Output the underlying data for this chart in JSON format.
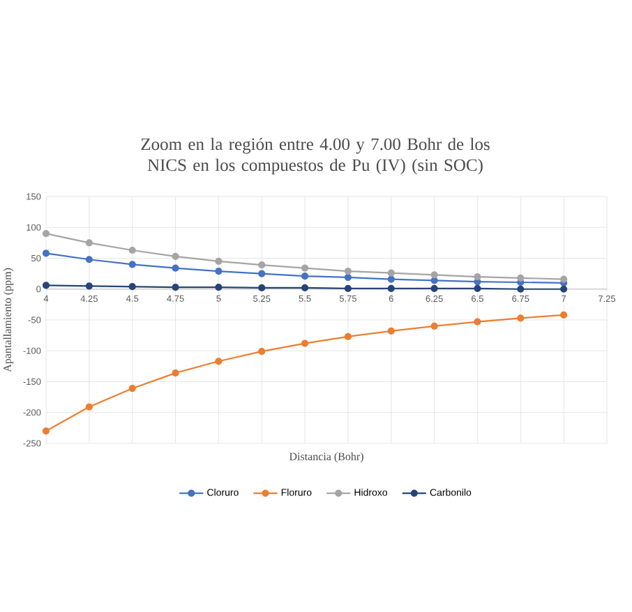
{
  "chart_data": {
    "type": "line",
    "title": "Zoom en la región entre 4.00 y 7.00 Bohr de los NICS en los compuestos de Pu (IV) (sin SOC)",
    "xlabel": "Distancia (Bohr)",
    "ylabel": "Apantallamiento (ppm)",
    "x": [
      4,
      4.25,
      4.5,
      4.75,
      5,
      5.25,
      5.5,
      5.75,
      6,
      6.25,
      6.5,
      6.75,
      7
    ],
    "series": [
      {
        "name": "Cloruro",
        "color": "#4472c4",
        "values": [
          58,
          48,
          40,
          34,
          29,
          25,
          21,
          19,
          16,
          14,
          12,
          11,
          10
        ]
      },
      {
        "name": "Floruro",
        "color": "#ed7d31",
        "values": [
          -230,
          -191,
          -161,
          -136,
          -117,
          -101,
          -88,
          -77,
          -68,
          -60,
          -53,
          -47,
          -42
        ]
      },
      {
        "name": "Hidroxo",
        "color": "#a5a5a5",
        "values": [
          90,
          75,
          63,
          53,
          45,
          39,
          34,
          29,
          26,
          23,
          20,
          18,
          16
        ]
      },
      {
        "name": "Carbonilo",
        "color": "#264478",
        "values": [
          6,
          5,
          4,
          3,
          3,
          2,
          2,
          1,
          1,
          1,
          1,
          0,
          0
        ]
      }
    ],
    "xlim": [
      4,
      7.25
    ],
    "xticks": [
      4,
      4.25,
      4.5,
      4.75,
      5,
      5.25,
      5.5,
      5.75,
      6,
      6.25,
      6.5,
      6.75,
      7,
      7.25
    ],
    "ylim": [
      -250,
      150
    ],
    "yticks": [
      -250,
      -200,
      -150,
      -100,
      -50,
      0,
      50,
      100,
      150
    ],
    "grid": true,
    "legend": "bottom",
    "marker": "circle"
  }
}
